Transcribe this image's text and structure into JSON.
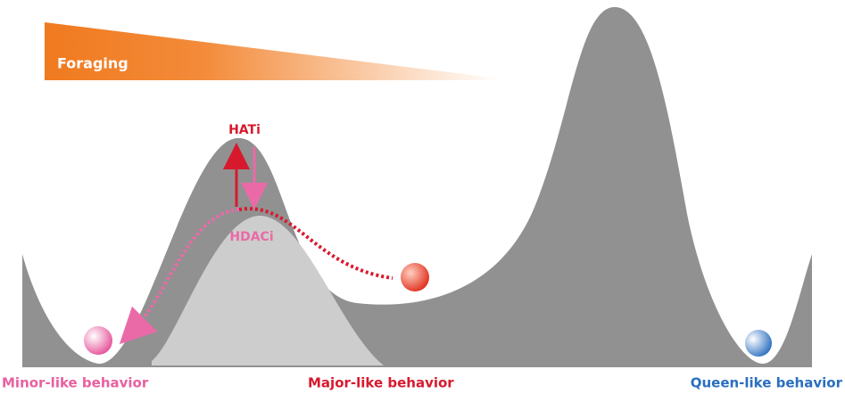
{
  "banner": {
    "label": "Foraging"
  },
  "arrows": {
    "up": "HATi",
    "down": "HDACi"
  },
  "states": [
    {
      "label": "Minor-like behavior"
    },
    {
      "label": "Major-like behavior"
    },
    {
      "label": "Queen-like behavior"
    }
  ]
}
